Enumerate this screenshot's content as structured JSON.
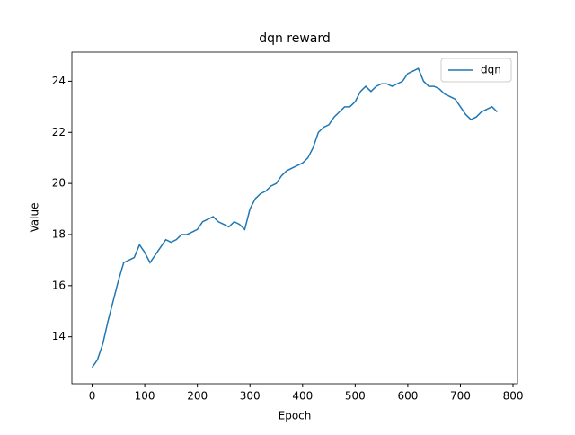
{
  "chart_data": {
    "type": "line",
    "title": "dqn reward",
    "x_label": "Epoch",
    "y_label": "Value",
    "x": [
      0,
      10,
      20,
      30,
      40,
      50,
      60,
      70,
      80,
      90,
      100,
      110,
      120,
      130,
      140,
      150,
      160,
      170,
      180,
      190,
      200,
      210,
      220,
      230,
      240,
      250,
      260,
      270,
      280,
      290,
      300,
      310,
      320,
      330,
      340,
      350,
      360,
      370,
      380,
      390,
      400,
      410,
      420,
      430,
      440,
      450,
      460,
      470,
      480,
      490,
      500,
      510,
      520,
      530,
      540,
      550,
      560,
      570,
      580,
      590,
      600,
      610,
      620,
      630,
      640,
      650,
      660,
      670,
      680,
      690,
      700,
      710,
      720,
      730,
      740,
      750,
      760,
      770
    ],
    "series": [
      {
        "name": "dqn",
        "color": "#1f77b4",
        "values": [
          12.8,
          13.1,
          13.7,
          14.6,
          15.4,
          16.2,
          16.9,
          17.0,
          17.1,
          17.6,
          17.3,
          16.9,
          17.2,
          17.5,
          17.8,
          17.7,
          17.8,
          18.0,
          18.0,
          18.1,
          18.2,
          18.5,
          18.6,
          18.7,
          18.5,
          18.4,
          18.3,
          18.5,
          18.4,
          18.2,
          19.0,
          19.4,
          19.6,
          19.7,
          19.9,
          20.0,
          20.3,
          20.5,
          20.6,
          20.7,
          20.8,
          21.0,
          21.4,
          22.0,
          22.2,
          22.3,
          22.6,
          22.8,
          23.0,
          23.0,
          23.2,
          23.6,
          23.8,
          23.6,
          23.8,
          23.9,
          23.9,
          23.8,
          23.9,
          24.0,
          24.3,
          24.4,
          24.5,
          24.0,
          23.8,
          23.8,
          23.7,
          23.5,
          23.4,
          23.3,
          23.0,
          22.7,
          22.5,
          22.6,
          22.8,
          22.9,
          23.0,
          22.8
        ]
      }
    ],
    "xlim": [
      -38.5,
      808.5
    ],
    "xticks": [
      0,
      100,
      200,
      300,
      400,
      500,
      600,
      700,
      800
    ],
    "ylim": [
      12.16,
      25.14
    ],
    "yticks": [
      14,
      16,
      18,
      20,
      22,
      24
    ],
    "legend": "upper right",
    "grid": false
  }
}
